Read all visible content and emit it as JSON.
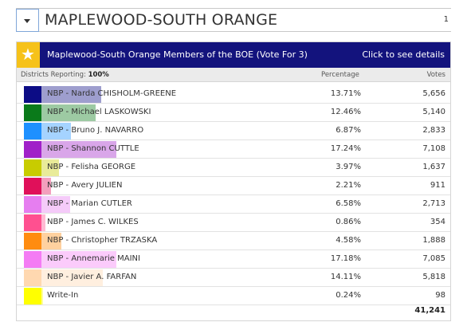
{
  "header": {
    "title": "MAPLEWOOD-SOUTH ORANGE",
    "page_number": "1"
  },
  "race": {
    "title": "Maplewood-South Orange Members of the BOE (Vote For 3)",
    "details_link": "Click to see details",
    "reporting_label": "Districts Reporting:",
    "reporting_value": "100%",
    "percentage_header": "Percentage",
    "votes_header": "Votes",
    "candidates": [
      {
        "name": "NBP - Narda CHISHOLM-GREENE",
        "percentage": "13.71%",
        "votes": "5,656",
        "pct_value": 13.71,
        "color": "#0c0c85"
      },
      {
        "name": "NBP - Michael LASKOWSKI",
        "percentage": "12.46%",
        "votes": "5,140",
        "pct_value": 12.46,
        "color": "#0a7a1a"
      },
      {
        "name": "NBP - Bruno J. NAVARRO",
        "percentage": "6.87%",
        "votes": "2,833",
        "pct_value": 6.87,
        "color": "#1e90ff"
      },
      {
        "name": "NBP - Shannon CUTTLE",
        "percentage": "17.24%",
        "votes": "7,108",
        "pct_value": 17.24,
        "color": "#a020c8"
      },
      {
        "name": "NBP - Felisha GEORGE",
        "percentage": "3.97%",
        "votes": "1,637",
        "pct_value": 3.97,
        "color": "#c8cc00"
      },
      {
        "name": "NBP - Avery JULIEN",
        "percentage": "2.21%",
        "votes": "911",
        "pct_value": 2.21,
        "color": "#e0105a"
      },
      {
        "name": "NBP - Marian CUTLER",
        "percentage": "6.58%",
        "votes": "2,713",
        "pct_value": 6.58,
        "color": "#e67ef0"
      },
      {
        "name": "NBP - James C. WILKES",
        "percentage": "0.86%",
        "votes": "354",
        "pct_value": 0.86,
        "color": "#ff5090"
      },
      {
        "name": "NBP - Christopher TRZASKA",
        "percentage": "4.58%",
        "votes": "1,888",
        "pct_value": 4.58,
        "color": "#ff8c10"
      },
      {
        "name": "NBP - Annemarie MAINI",
        "percentage": "17.18%",
        "votes": "7,085",
        "pct_value": 17.18,
        "color": "#f47cf4"
      },
      {
        "name": "NBP - Javier A. FARFAN",
        "percentage": "14.11%",
        "votes": "5,818",
        "pct_value": 14.11,
        "color": "#ffd8b0"
      },
      {
        "name": "Write-In",
        "percentage": "0.24%",
        "votes": "98",
        "pct_value": 0.24,
        "color": "#ffff00"
      }
    ],
    "total_votes": "41,241"
  },
  "icons": {
    "toggle": "caret-down-icon",
    "race": "star-icon"
  }
}
